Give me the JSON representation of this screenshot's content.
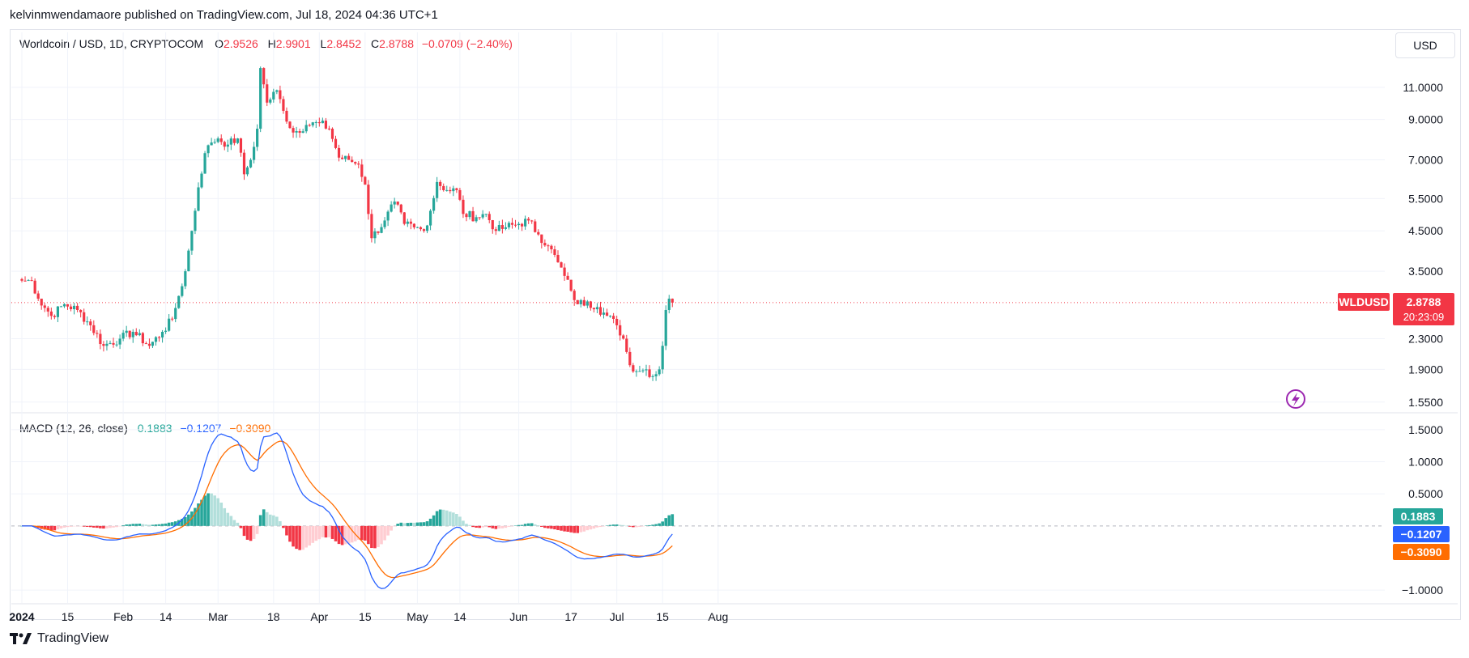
{
  "publisher_line": "kelvinmwendamaore published on TradingView.com, Jul 18, 2024 04:36 UTC+1",
  "legend": {
    "symbol": "Worldcoin / USD, 1D, CRYPTOCOM",
    "o_label": "O",
    "o_value": "2.9526",
    "h_label": "H",
    "h_value": "2.9901",
    "l_label": "L",
    "l_value": "2.8452",
    "c_label": "C",
    "c_value": "2.8788",
    "change": "−0.0709 (−2.40%)"
  },
  "currency": "USD",
  "price_tag": {
    "symbol": "WLDUSD",
    "price": "2.8788",
    "countdown": "20:23:09"
  },
  "macd_legend": {
    "name": "MACD (12, 26, close)",
    "hist": "0.1883",
    "macd": "−0.1207",
    "signal": "−0.3090"
  },
  "macd_tags": {
    "hist": "0.1883",
    "macd": "−0.1207",
    "signal": "−0.3090"
  },
  "footer": {
    "brand": "TradingView"
  },
  "colors": {
    "up": "#26a69a",
    "down": "#f23645",
    "macd_line": "#2962ff",
    "signal_line": "#ff6d00",
    "hist_up_light": "#b2dfdb",
    "hist_down_light": "#ffcdd2",
    "grid": "#f0f3fa"
  },
  "chart_data": [
    {
      "type": "candlestick",
      "title": "Worldcoin / USD, 1D, CRYPTOCOM",
      "y_scale": "log",
      "ylim": [
        1.45,
        14.0
      ],
      "y_ticks": [
        11.0,
        9.0,
        7.0,
        5.5,
        4.5,
        3.5,
        2.3,
        1.9,
        1.55
      ],
      "y_tick_labels": [
        "11.0000",
        "9.0000",
        "7.0000",
        "5.5000",
        "4.5000",
        "3.5000",
        "2.3000",
        "1.9000",
        "1.5500"
      ],
      "x_ticks": [
        {
          "date": "2024-01-01",
          "label": "2024"
        },
        {
          "date": "2024-01-15",
          "label": "15"
        },
        {
          "date": "2024-02-01",
          "label": "Feb"
        },
        {
          "date": "2024-02-14",
          "label": "14"
        },
        {
          "date": "2024-03-01",
          "label": "Mar"
        },
        {
          "date": "2024-03-18",
          "label": "18"
        },
        {
          "date": "2024-04-01",
          "label": "Apr"
        },
        {
          "date": "2024-04-15",
          "label": "15"
        },
        {
          "date": "2024-05-01",
          "label": "May"
        },
        {
          "date": "2024-05-14",
          "label": "14"
        },
        {
          "date": "2024-06-01",
          "label": "Jun"
        },
        {
          "date": "2024-06-17",
          "label": "17"
        },
        {
          "date": "2024-07-01",
          "label": "Jul"
        },
        {
          "date": "2024-07-15",
          "label": "15"
        },
        {
          "date": "2024-08-01",
          "label": "Aug"
        }
      ],
      "x_start": "2024-01-01",
      "close_anchors": [
        [
          "2024-01-01",
          3.3
        ],
        [
          "2024-01-04",
          3.3
        ],
        [
          "2024-01-06",
          2.95
        ],
        [
          "2024-01-10",
          2.65
        ],
        [
          "2024-01-14",
          2.85
        ],
        [
          "2024-01-18",
          2.75
        ],
        [
          "2024-01-22",
          2.5
        ],
        [
          "2024-01-26",
          2.2
        ],
        [
          "2024-01-31",
          2.3
        ],
        [
          "2024-02-04",
          2.4
        ],
        [
          "2024-02-09",
          2.2
        ],
        [
          "2024-02-13",
          2.4
        ],
        [
          "2024-02-16",
          2.6
        ],
        [
          "2024-02-18",
          3.0
        ],
        [
          "2024-02-20",
          3.5
        ],
        [
          "2024-02-22",
          4.5
        ],
        [
          "2024-02-24",
          5.9
        ],
        [
          "2024-02-26",
          7.3
        ],
        [
          "2024-02-28",
          7.8
        ],
        [
          "2024-03-01",
          8.0
        ],
        [
          "2024-03-04",
          7.7
        ],
        [
          "2024-03-07",
          8.0
        ],
        [
          "2024-03-09",
          6.4
        ],
        [
          "2024-03-11",
          7.0
        ],
        [
          "2024-03-13",
          8.5
        ],
        [
          "2024-03-14",
          12.4
        ],
        [
          "2024-03-16",
          10.0
        ],
        [
          "2024-03-19",
          10.8
        ],
        [
          "2024-03-21",
          9.5
        ],
        [
          "2024-03-24",
          8.3
        ],
        [
          "2024-03-28",
          8.7
        ],
        [
          "2024-04-01",
          8.8
        ],
        [
          "2024-04-04",
          8.5
        ],
        [
          "2024-04-07",
          7.1
        ],
        [
          "2024-04-10",
          7.0
        ],
        [
          "2024-04-13",
          6.8
        ],
        [
          "2024-04-15",
          6.0
        ],
        [
          "2024-04-17",
          4.3
        ],
        [
          "2024-04-21",
          4.8
        ],
        [
          "2024-04-24",
          5.4
        ],
        [
          "2024-04-27",
          4.7
        ],
        [
          "2024-04-30",
          4.6
        ],
        [
          "2024-05-03",
          4.5
        ],
        [
          "2024-05-05",
          5.1
        ],
        [
          "2024-05-07",
          6.1
        ],
        [
          "2024-05-10",
          5.8
        ],
        [
          "2024-05-13",
          5.8
        ],
        [
          "2024-05-15",
          5.0
        ],
        [
          "2024-05-19",
          4.9
        ],
        [
          "2024-05-22",
          5.0
        ],
        [
          "2024-05-25",
          4.5
        ],
        [
          "2024-05-28",
          4.6
        ],
        [
          "2024-06-01",
          4.7
        ],
        [
          "2024-06-04",
          4.8
        ],
        [
          "2024-06-07",
          4.4
        ],
        [
          "2024-06-10",
          4.1
        ],
        [
          "2024-06-13",
          3.7
        ],
        [
          "2024-06-15",
          3.4
        ],
        [
          "2024-06-17",
          3.1
        ],
        [
          "2024-06-19",
          2.85
        ],
        [
          "2024-06-22",
          2.9
        ],
        [
          "2024-06-25",
          2.8
        ],
        [
          "2024-06-28",
          2.65
        ],
        [
          "2024-07-01",
          2.5
        ],
        [
          "2024-07-03",
          2.3
        ],
        [
          "2024-07-05",
          1.95
        ],
        [
          "2024-07-08",
          1.88
        ],
        [
          "2024-07-10",
          1.9
        ],
        [
          "2024-07-12",
          1.82
        ],
        [
          "2024-07-14",
          1.9
        ],
        [
          "2024-07-15",
          2.2
        ],
        [
          "2024-07-16",
          2.75
        ],
        [
          "2024-07-17",
          2.95
        ],
        [
          "2024-07-18",
          2.8788
        ]
      ],
      "last_price": 2.8788
    },
    {
      "type": "macd",
      "title": "MACD (12, 26, close)",
      "ylim": [
        -1.2,
        1.7
      ],
      "y_ticks": [
        1.5,
        1.0,
        0.5,
        -1.0
      ],
      "y_tick_labels": [
        "1.5000",
        "1.0000",
        "0.5000",
        "−1.0000"
      ],
      "last": {
        "histogram": 0.1883,
        "macd": -0.1207,
        "signal": -0.309
      }
    }
  ]
}
